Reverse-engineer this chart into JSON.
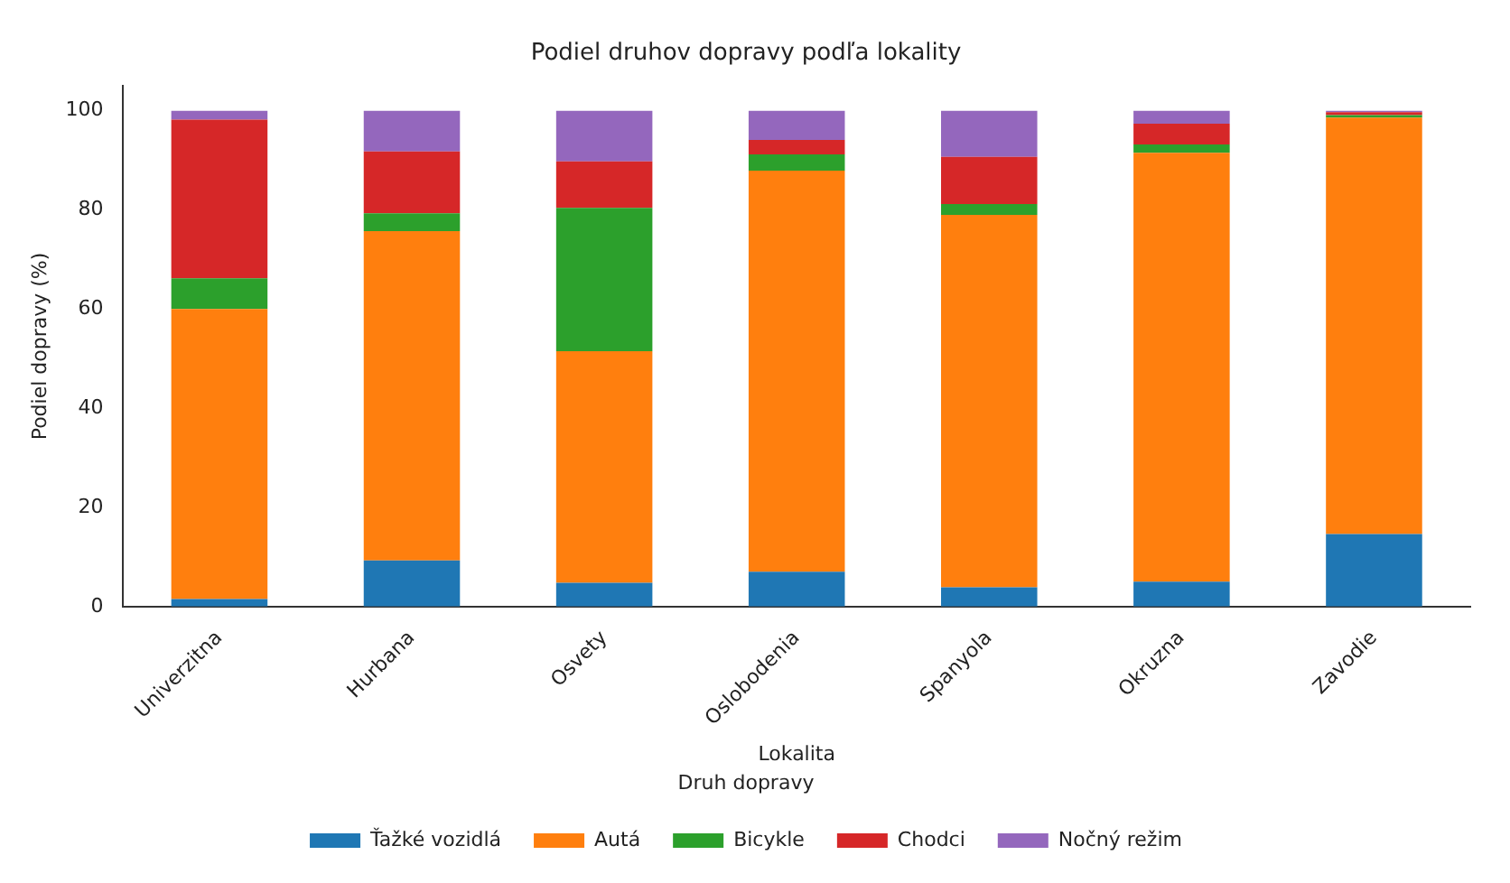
{
  "chart_data": {
    "type": "bar",
    "title": "Podiel druhov dopravy podľa lokality",
    "xlabel": "Lokalita",
    "ylabel": "Podiel dopravy (%)",
    "legend_title": "Druh dopravy",
    "categories": [
      "Univerzitna",
      "Hurbana",
      "Osvety",
      "Oslobodenia",
      "Spanyola",
      "Okruzna",
      "Zavodie"
    ],
    "stacked": true,
    "ylim": [
      0,
      105
    ],
    "yticks": [
      0,
      20,
      40,
      60,
      80,
      100
    ],
    "grid": false,
    "legend": "bottom",
    "series": [
      {
        "name": "Ťažké vozidlá",
        "color": "#1f77b4",
        "values": [
          1.5,
          9.3,
          4.8,
          7.0,
          3.9,
          5.0,
          14.6
        ]
      },
      {
        "name": "Autá",
        "color": "#ff7f0e",
        "values": [
          58.5,
          66.4,
          46.7,
          80.9,
          75.1,
          86.5,
          84.0
        ]
      },
      {
        "name": "Bicykle",
        "color": "#2ca02c",
        "values": [
          6.2,
          3.6,
          28.9,
          3.3,
          2.2,
          1.7,
          0.5
        ]
      },
      {
        "name": "Chodci",
        "color": "#d62728",
        "values": [
          32.0,
          12.5,
          9.4,
          2.9,
          9.5,
          4.2,
          0.6
        ]
      },
      {
        "name": "Nočný režim",
        "color": "#9467bd",
        "values": [
          1.8,
          8.2,
          10.2,
          5.9,
          9.3,
          2.6,
          0.3
        ]
      }
    ]
  }
}
